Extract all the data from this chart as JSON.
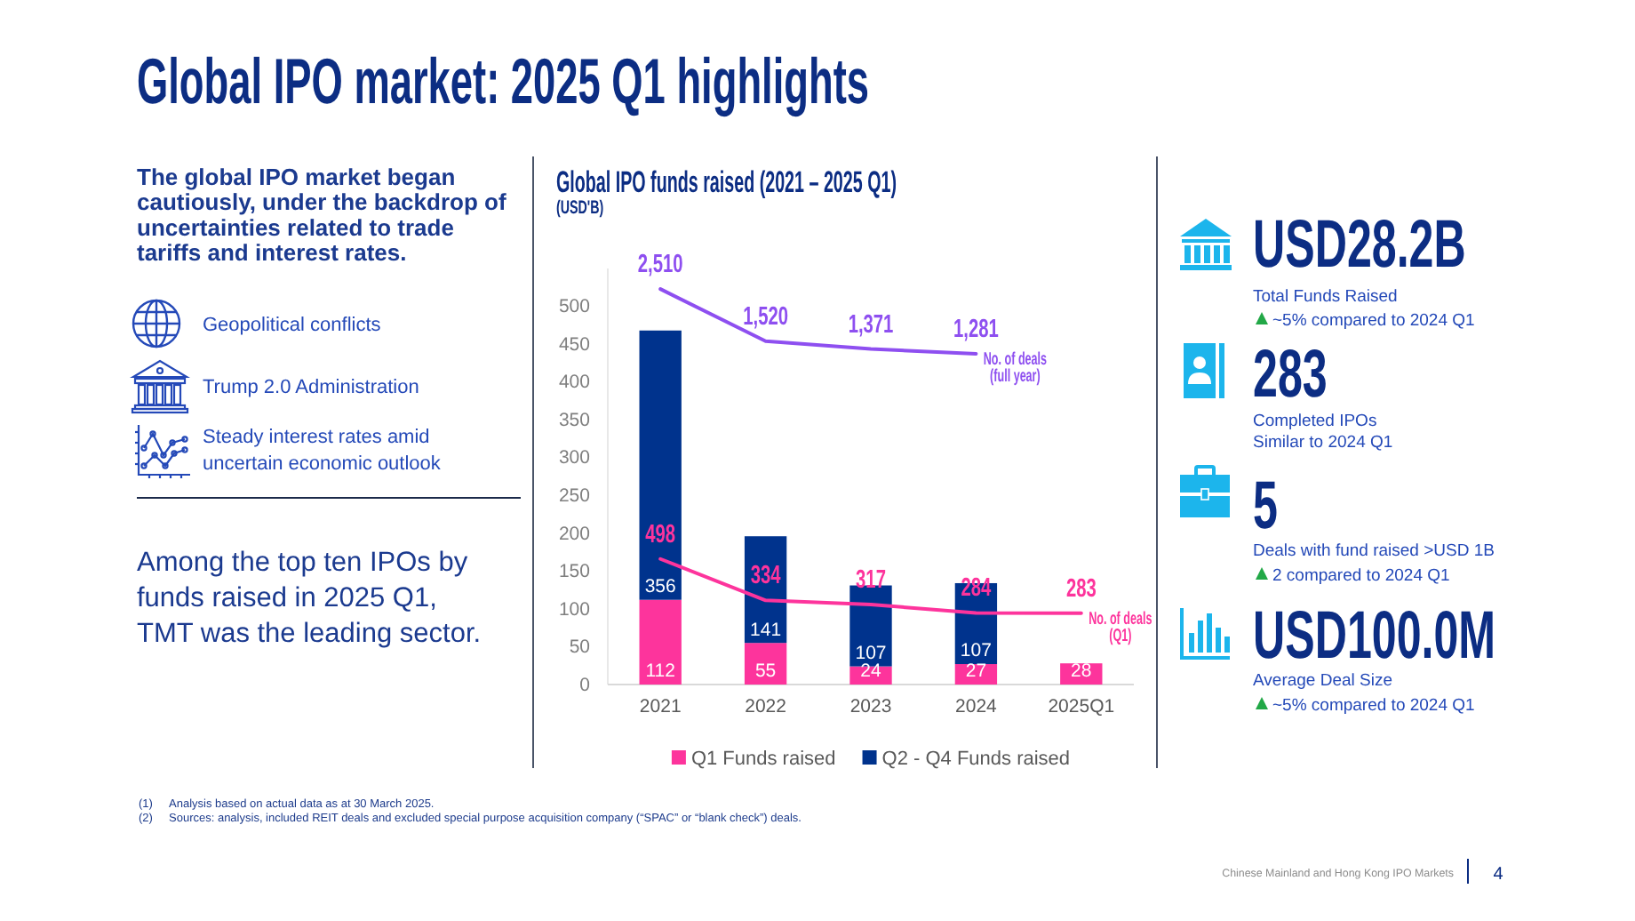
{
  "chart_data": [
    {
      "type": "other",
      "title": "Global IPO market: 2025 Q1 highlights",
      "annotations": [
        "The global IPO market began cautiously, under the backdrop of uncertainties related to trade tariffs and interest rates.",
        "Geopolitical conflicts",
        "Trump 2.0 Administration",
        "Steady interest rates amid uncertain economic outlook",
        "Among the top ten IPOs by funds raised in 2025 Q1, TMT was the leading sector."
      ]
    },
    {
      "type": "bar",
      "title": "Global IPO funds raised (2021 – 2025 Q1)",
      "subtitle": "(USD'B)",
      "categories": [
        "2021",
        "2022",
        "2023",
        "2024",
        "2025Q1"
      ],
      "stacked": true,
      "series": [
        {
          "name": "Q1 Funds raised",
          "type": "bar",
          "color": "#fd349c",
          "values": [
            112,
            55,
            24,
            27,
            28
          ],
          "value_labels": [
            "112",
            "55",
            "24",
            "27",
            "28"
          ]
        },
        {
          "name": "Q2 - Q4 Funds raised",
          "type": "bar",
          "color": "#00338d",
          "values": [
            356,
            141,
            107,
            107,
            null
          ],
          "value_labels": [
            "356",
            "141",
            "107",
            "107",
            null
          ]
        },
        {
          "name": "No. of deals (Q1)",
          "type": "line",
          "axis": "y2",
          "color": "#fd349c",
          "values": [
            498,
            334,
            317,
            284,
            283
          ],
          "value_labels": [
            "498",
            "334",
            "317",
            "284",
            "283"
          ]
        }
      ],
      "ylim": [
        0,
        550
      ],
      "yticks": [
        0,
        50,
        100,
        150,
        200,
        250,
        300,
        350,
        400,
        450,
        500
      ],
      "y2lim": [
        0,
        1650
      ],
      "legend": "bottom",
      "annotations": [
        "(1) Analysis based on actual data as at 30 March 2025.",
        "(2) Sources: analysis, included REIT deals and excluded special purpose acquisition company (“SPAC” or “blank check”) deals."
      ]
    },
    {
      "type": "line",
      "categories": [
        null,
        null,
        null,
        null,
        null
      ],
      "tick_labels": false,
      "ylim": [
        -5000,
        2900
      ],
      "series": [
        {
          "name": "No. of deals (full year)",
          "color": "#8e4ff0",
          "values": [
            2510,
            1520,
            1371,
            1281,
            null
          ],
          "value_labels": [
            "2,510",
            "1,520",
            "1,371",
            "1,281",
            null
          ]
        }
      ]
    },
    {
      "type": "other",
      "annotations": [
        "USD28.2B",
        "Total Funds Raised",
        "~5% compared to 2024 Q1",
        "283",
        "Completed IPOs",
        "Similar to 2024 Q1",
        "5",
        "Deals with fund raised >USD 1B",
        "2 compared to 2024 Q1",
        "USD100.0M",
        "Average Deal Size",
        "~5% compared to 2024 Q1",
        "Chinese Mainland and Hong Kong IPO Markets",
        "4"
      ]
    }
  ]
}
